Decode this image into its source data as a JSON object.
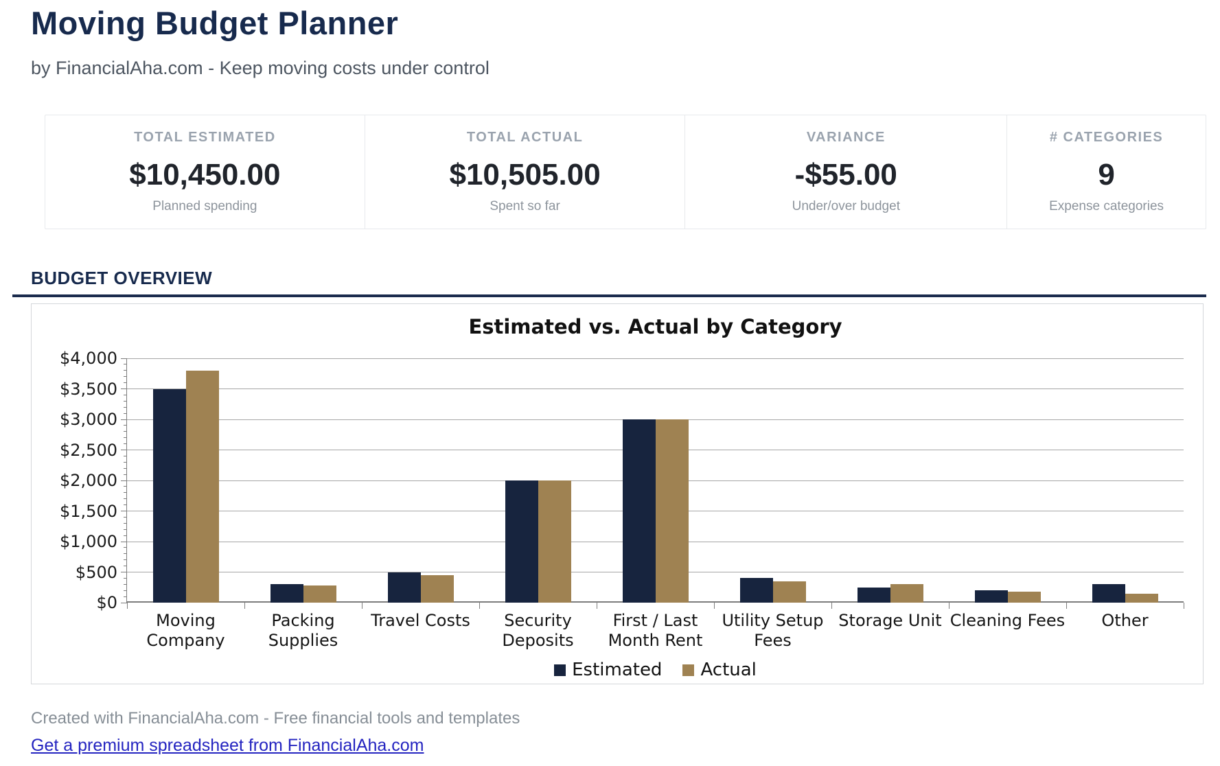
{
  "header": {
    "title": "Moving Budget Planner",
    "subtitle": "by FinancialAha.com - Keep moving costs under control"
  },
  "summary_cards": [
    {
      "label": "TOTAL ESTIMATED",
      "value": "$10,450.00",
      "caption": "Planned spending"
    },
    {
      "label": "TOTAL ACTUAL",
      "value": "$10,505.00",
      "caption": "Spent so far"
    },
    {
      "label": "VARIANCE",
      "value": "-$55.00",
      "caption": "Under/over budget"
    },
    {
      "label": "# CATEGORIES",
      "value": "9",
      "caption": "Expense categories"
    }
  ],
  "section": {
    "heading": "BUDGET OVERVIEW"
  },
  "chart_data": {
    "type": "bar",
    "title": "Estimated vs. Actual by Category",
    "categories": [
      "Moving Company",
      "Packing Supplies",
      "Travel Costs",
      "Security Deposits",
      "First / Last Month Rent",
      "Utility Setup Fees",
      "Storage Unit",
      "Cleaning Fees",
      "Other"
    ],
    "category_label_lines": [
      [
        "Moving",
        "Company"
      ],
      [
        "Packing",
        "Supplies"
      ],
      [
        "Travel Costs"
      ],
      [
        "Security",
        "Deposits"
      ],
      [
        "First / Last",
        "Month Rent"
      ],
      [
        "Utility Setup",
        "Fees"
      ],
      [
        "Storage Unit"
      ],
      [
        "Cleaning Fees"
      ],
      [
        "Other"
      ]
    ],
    "series": [
      {
        "name": "Estimated",
        "color": "#17243E",
        "values": [
          3500,
          300,
          500,
          2000,
          3000,
          400,
          250,
          200,
          300
        ]
      },
      {
        "name": "Actual",
        "color": "#9F8252",
        "values": [
          3800,
          280,
          450,
          2000,
          3000,
          350,
          300,
          175,
          150
        ]
      }
    ],
    "ylim": [
      0,
      4000
    ],
    "y_tick_step": 500,
    "y_minor_step": 100,
    "y_tick_labels": [
      "$0",
      "$500",
      "$1,000",
      "$1,500",
      "$2,000",
      "$2,500",
      "$3,000",
      "$3,500",
      "$4,000"
    ],
    "grid": true,
    "legend_position": "bottom"
  },
  "footer": {
    "credit": "Created with FinancialAha.com - Free financial tools and templates",
    "link": "Get a premium spreadsheet from FinancialAha.com"
  },
  "colors": {
    "estimated": "#17243E",
    "actual": "#9F8252",
    "accent_navy": "#1B2B4D",
    "gridline": "#A6A6A6",
    "axis": "#7C7C7C"
  }
}
